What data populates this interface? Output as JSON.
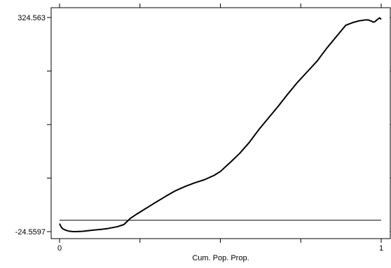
{
  "chart_data": {
    "type": "line",
    "title": "",
    "xlabel": "Cum. Pop. Prop.",
    "ylabel": "",
    "xlim": [
      0,
      1
    ],
    "ylim": [
      -24.5597,
      324.563
    ],
    "x_ticks": [
      0,
      0.25,
      0.5,
      0.75,
      1
    ],
    "x_tick_labels": [
      "0",
      "",
      "",
      "",
      "1"
    ],
    "y_ticks": [
      -24.5597,
      62.72,
      150.0,
      237.28,
      324.563
    ],
    "y_tick_labels": [
      "-24.5597",
      "",
      "",
      "",
      "324.563"
    ],
    "grid": false,
    "series": [
      {
        "color": "#000000",
        "x": [
          0,
          0.005,
          0.01,
          0.02,
          0.03,
          0.04,
          0.05,
          0.07,
          0.09,
          0.11,
          0.13,
          0.15,
          0.18,
          0.2,
          0.22,
          0.24,
          0.26,
          0.28,
          0.3,
          0.33,
          0.36,
          0.39,
          0.42,
          0.45,
          0.48,
          0.5,
          0.53,
          0.56,
          0.59,
          0.62,
          0.65,
          0.68,
          0.71,
          0.74,
          0.77,
          0.8,
          0.83,
          0.86,
          0.89,
          0.91,
          0.93,
          0.95,
          0.96,
          0.97,
          0.975,
          0.98,
          0.985,
          0.99,
          0.995,
          1.0
        ],
        "values": [
          -11.5,
          -17.0,
          -20.0,
          -22.5,
          -23.8,
          -24.4,
          -24.5,
          -24.2,
          -23.0,
          -21.8,
          -20.8,
          -19.5,
          -16.5,
          -13.0,
          -3.0,
          4.0,
          10.5,
          17.0,
          23.5,
          33.0,
          42.0,
          49.0,
          55.0,
          60.0,
          67.0,
          73.5,
          88.0,
          103.0,
          121.0,
          142.0,
          161.0,
          180.0,
          200.0,
          219.0,
          236.0,
          253.0,
          274.0,
          293.0,
          312.0,
          316.0,
          319.0,
          320.5,
          320.5,
          318.5,
          317.0,
          317.5,
          320.0,
          322.0,
          324.0,
          321.5
        ]
      },
      {
        "color": "#000000",
        "x": [
          0,
          1
        ],
        "values": [
          -6.0,
          -6.0
        ]
      }
    ]
  }
}
